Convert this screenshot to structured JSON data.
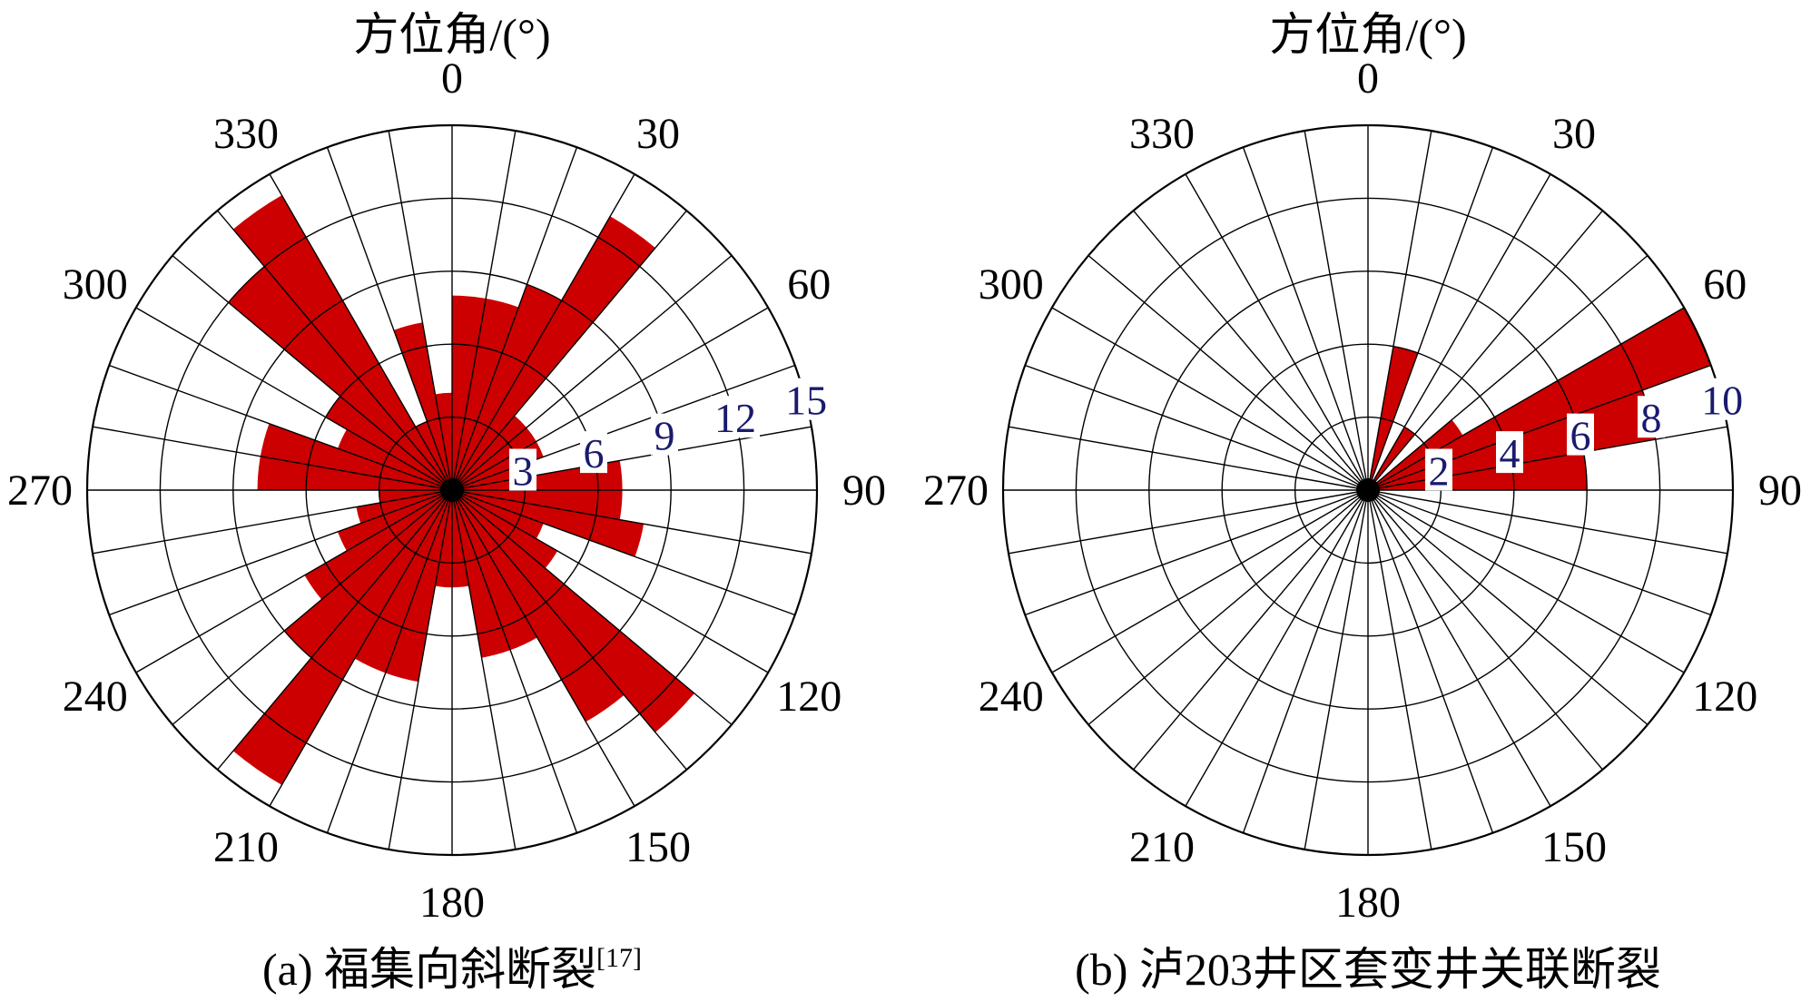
{
  "chart_data": [
    {
      "type": "rose",
      "title": "方位角/(°)",
      "caption": "(a) 福集向斜断裂",
      "caption_ref": "[17]",
      "bin_width_deg": 10,
      "angle_ticks": [
        "0",
        "30",
        "60",
        "90",
        "120",
        "150",
        "180",
        "210",
        "240",
        "270",
        "300",
        "330"
      ],
      "radial_ticks": [
        "3",
        "6",
        "9",
        "12",
        "15"
      ],
      "rmax": 15,
      "bar_color": "#cc0000",
      "bins": [
        {
          "from": 0,
          "to": 10,
          "value": 8
        },
        {
          "from": 10,
          "to": 20,
          "value": 8
        },
        {
          "from": 20,
          "to": 30,
          "value": 9
        },
        {
          "from": 30,
          "to": 40,
          "value": 13
        },
        {
          "from": 40,
          "to": 50,
          "value": 4
        },
        {
          "from": 50,
          "to": 60,
          "value": 4
        },
        {
          "from": 60,
          "to": 70,
          "value": 4
        },
        {
          "from": 70,
          "to": 80,
          "value": 3
        },
        {
          "from": 80,
          "to": 90,
          "value": 7
        },
        {
          "from": 90,
          "to": 100,
          "value": 7
        },
        {
          "from": 100,
          "to": 110,
          "value": 8
        },
        {
          "from": 110,
          "to": 120,
          "value": 4
        },
        {
          "from": 120,
          "to": 130,
          "value": 5
        },
        {
          "from": 130,
          "to": 140,
          "value": 13
        },
        {
          "from": 140,
          "to": 150,
          "value": 11
        },
        {
          "from": 150,
          "to": 160,
          "value": 7
        },
        {
          "from": 160,
          "to": 170,
          "value": 7
        },
        {
          "from": 170,
          "to": 180,
          "value": 4
        },
        {
          "from": 180,
          "to": 190,
          "value": 4
        },
        {
          "from": 190,
          "to": 200,
          "value": 8
        },
        {
          "from": 200,
          "to": 210,
          "value": 8
        },
        {
          "from": 210,
          "to": 220,
          "value": 14
        },
        {
          "from": 220,
          "to": 230,
          "value": 9
        },
        {
          "from": 230,
          "to": 240,
          "value": 7
        },
        {
          "from": 240,
          "to": 250,
          "value": 5
        },
        {
          "from": 250,
          "to": 260,
          "value": 4
        },
        {
          "from": 260,
          "to": 270,
          "value": 3
        },
        {
          "from": 270,
          "to": 280,
          "value": 8
        },
        {
          "from": 280,
          "to": 290,
          "value": 8
        },
        {
          "from": 290,
          "to": 300,
          "value": 5
        },
        {
          "from": 300,
          "to": 310,
          "value": 6
        },
        {
          "from": 310,
          "to": 320,
          "value": 12
        },
        {
          "from": 320,
          "to": 330,
          "value": 14
        },
        {
          "from": 330,
          "to": 340,
          "value": 3
        },
        {
          "from": 340,
          "to": 350,
          "value": 7
        },
        {
          "from": 350,
          "to": 360,
          "value": 4
        }
      ]
    },
    {
      "type": "rose",
      "title": "方位角/(°)",
      "caption": "(b) 泸203井区套变井关联断裂",
      "caption_ref": "",
      "bin_width_deg": 10,
      "angle_ticks": [
        "0",
        "30",
        "60",
        "90",
        "120",
        "150",
        "180",
        "210",
        "240",
        "270",
        "300",
        "330"
      ],
      "radial_ticks": [
        "2",
        "4",
        "6",
        "8",
        "10"
      ],
      "rmax": 10,
      "bar_color": "#cc0000",
      "bins": [
        {
          "from": 10,
          "to": 20,
          "value": 4
        },
        {
          "from": 30,
          "to": 40,
          "value": 2
        },
        {
          "from": 40,
          "to": 50,
          "value": 0
        },
        {
          "from": 50,
          "to": 60,
          "value": 3
        },
        {
          "from": 60,
          "to": 70,
          "value": 10
        },
        {
          "from": 70,
          "to": 80,
          "value": 8
        },
        {
          "from": 80,
          "to": 90,
          "value": 6
        }
      ]
    }
  ]
}
